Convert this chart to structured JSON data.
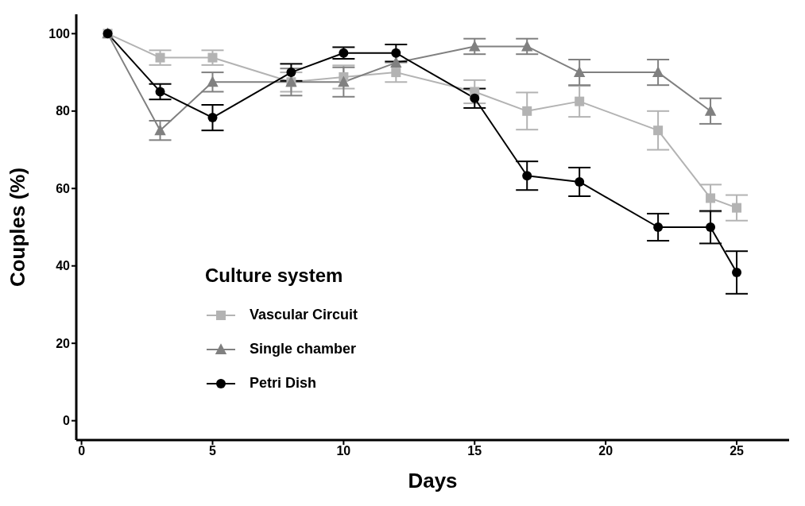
{
  "chart_data": {
    "type": "line",
    "xlabel": "Days",
    "ylabel": "Couples (%)",
    "legend_title": "Culture system",
    "xlim": [
      -0.2,
      27
    ],
    "xticks": [
      0,
      5,
      10,
      15,
      20,
      25
    ],
    "ylim": [
      -5,
      105
    ],
    "yticks": [
      0,
      20,
      40,
      60,
      80,
      100
    ],
    "grid": false,
    "legend": "bottom left",
    "line_style": "solid",
    "series": [
      {
        "name": "Vascular Circuit",
        "color": "#b3b3b3",
        "marker": "square",
        "x": [
          1,
          3,
          5,
          8,
          10,
          12,
          15,
          17,
          19,
          22,
          24,
          25
        ],
        "values": [
          100,
          93.8,
          93.8,
          87.5,
          88.8,
          90,
          85,
          80,
          82.5,
          75,
          57.5,
          55
        ],
        "errors": [
          0,
          1.9,
          1.9,
          2.5,
          3,
          2.5,
          3,
          4.8,
          4,
          5,
          3.5,
          3.3
        ]
      },
      {
        "name": "Single chamber",
        "color": "#808080",
        "marker": "triangle",
        "x": [
          1,
          3,
          5,
          8,
          10,
          12,
          15,
          17,
          19,
          22,
          24
        ],
        "values": [
          100,
          75,
          87.5,
          87.5,
          87.5,
          92.5,
          96.7,
          96.7,
          90,
          90,
          80
        ],
        "errors": [
          0,
          2.5,
          2.5,
          3.5,
          3.8,
          0,
          2,
          2,
          3.3,
          3.3,
          3.3
        ]
      },
      {
        "name": "Petri Dish",
        "color": "#000000",
        "marker": "circle",
        "x": [
          1,
          3,
          5,
          8,
          10,
          12,
          15,
          17,
          19,
          22,
          24,
          25
        ],
        "values": [
          100,
          85,
          78.3,
          90,
          95,
          95,
          83.3,
          63.3,
          61.7,
          50,
          50,
          38.3
        ],
        "errors": [
          0,
          2,
          3.3,
          2.2,
          1.5,
          2.2,
          2.5,
          3.7,
          3.7,
          3.5,
          4.2,
          5.5
        ]
      }
    ]
  }
}
